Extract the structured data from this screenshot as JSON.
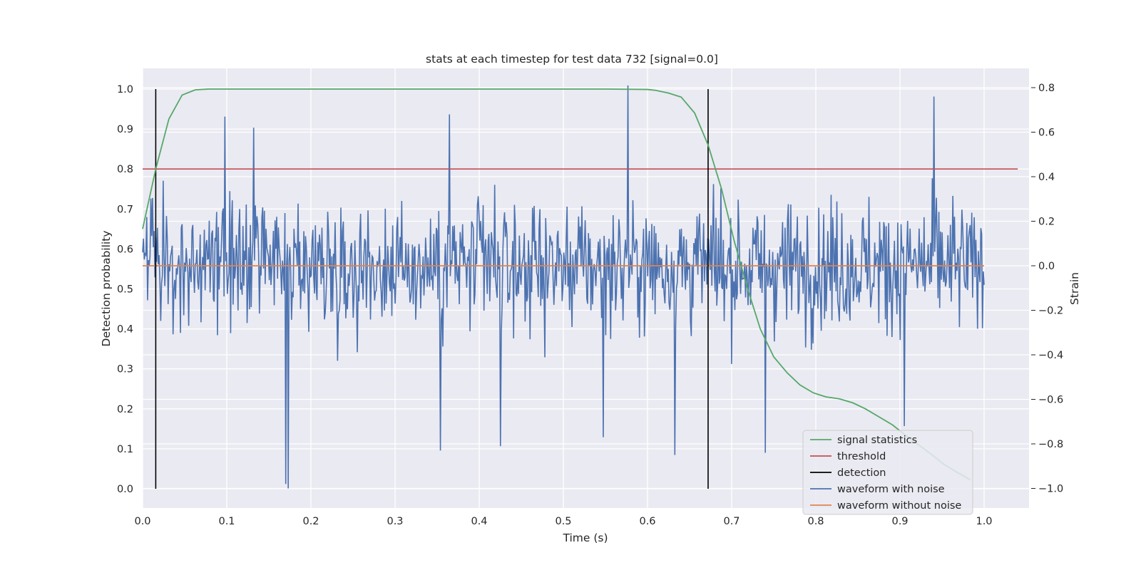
{
  "chart_data": {
    "type": "line",
    "title": "stats at each timestep for test data 732 [signal=0.0]",
    "xlabel": "Time (s)",
    "ylabel": "Detection probability",
    "y2label": "Strain",
    "xlim": [
      0.0,
      1.05
    ],
    "ylim": [
      -0.05,
      1.05
    ],
    "y2lim": [
      -1.0889,
      0.8889
    ],
    "x_ticks": [
      "0.0",
      "0.1",
      "0.2",
      "0.3",
      "0.4",
      "0.5",
      "0.6",
      "0.7",
      "0.8",
      "0.9",
      "1.0"
    ],
    "y_ticks": [
      "0.0",
      "0.1",
      "0.2",
      "0.3",
      "0.4",
      "0.5",
      "0.6",
      "0.7",
      "0.8",
      "0.9",
      "1.0"
    ],
    "y2_ticks": [
      "−1.0",
      "−0.8",
      "−0.6",
      "−0.4",
      "−0.2",
      "0.0",
      "0.2",
      "0.4",
      "0.6",
      "0.8"
    ],
    "grid": true,
    "legend_position": "lower-right",
    "series": [
      {
        "name": "signal statistics",
        "axis": "left",
        "color": "#55a868",
        "x": [
          0.0,
          0.0156,
          0.0312,
          0.0469,
          0.0625,
          0.0781,
          0.1,
          0.15,
          0.2,
          0.25,
          0.3,
          0.35,
          0.4,
          0.45,
          0.5,
          0.55,
          0.6,
          0.609,
          0.625,
          0.64,
          0.656,
          0.672,
          0.688,
          0.703,
          0.719,
          0.734,
          0.75,
          0.766,
          0.781,
          0.797,
          0.812,
          0.828,
          0.844,
          0.859,
          0.875,
          0.891,
          0.906,
          0.922,
          0.938,
          0.953,
          0.969,
          0.984
        ],
        "y": [
          0.65,
          0.8,
          0.925,
          0.985,
          0.998,
          1.0,
          1.0,
          1.0,
          1.0,
          1.0,
          1.0,
          1.0,
          1.0,
          1.0,
          1.0,
          1.0,
          0.999,
          0.997,
          0.99,
          0.98,
          0.94,
          0.86,
          0.75,
          0.62,
          0.5,
          0.4,
          0.33,
          0.29,
          0.26,
          0.24,
          0.23,
          0.225,
          0.215,
          0.2,
          0.18,
          0.16,
          0.135,
          0.11,
          0.085,
          0.06,
          0.04,
          0.022
        ]
      },
      {
        "name": "threshold",
        "axis": "left",
        "color": "#c44e52",
        "x": [
          0.0,
          1.04
        ],
        "y": [
          0.8,
          0.8
        ]
      },
      {
        "name": "detection",
        "axis": "left",
        "color": "#000000",
        "segments": [
          {
            "x": 0.0156,
            "y": [
              0.0,
              1.0
            ]
          },
          {
            "x": 0.672,
            "y": [
              0.0,
              1.0
            ]
          }
        ]
      },
      {
        "name": "waveform with noise",
        "axis": "right",
        "color": "#4c72b0",
        "x_range": [
          0.0,
          1.0
        ],
        "n_points": 1024,
        "y_range": [
          -1.0,
          0.81
        ],
        "spikes": [
          {
            "x": 0.098,
            "y": 0.67
          },
          {
            "x": 0.132,
            "y": 0.62
          },
          {
            "x": 0.17,
            "y": -0.98
          },
          {
            "x": 0.173,
            "y": -1.0
          },
          {
            "x": 0.365,
            "y": 0.68
          },
          {
            "x": 0.354,
            "y": -0.83
          },
          {
            "x": 0.425,
            "y": -0.81
          },
          {
            "x": 0.547,
            "y": -0.77
          },
          {
            "x": 0.577,
            "y": 0.81
          },
          {
            "x": 0.632,
            "y": -0.85
          },
          {
            "x": 0.74,
            "y": -0.84
          },
          {
            "x": 0.94,
            "y": 0.76
          },
          {
            "x": 0.905,
            "y": -0.72
          }
        ]
      },
      {
        "name": "waveform without noise",
        "axis": "right",
        "color": "#dd8452",
        "x": [
          0.0,
          1.0
        ],
        "y": [
          0.0,
          0.0
        ]
      }
    ]
  }
}
